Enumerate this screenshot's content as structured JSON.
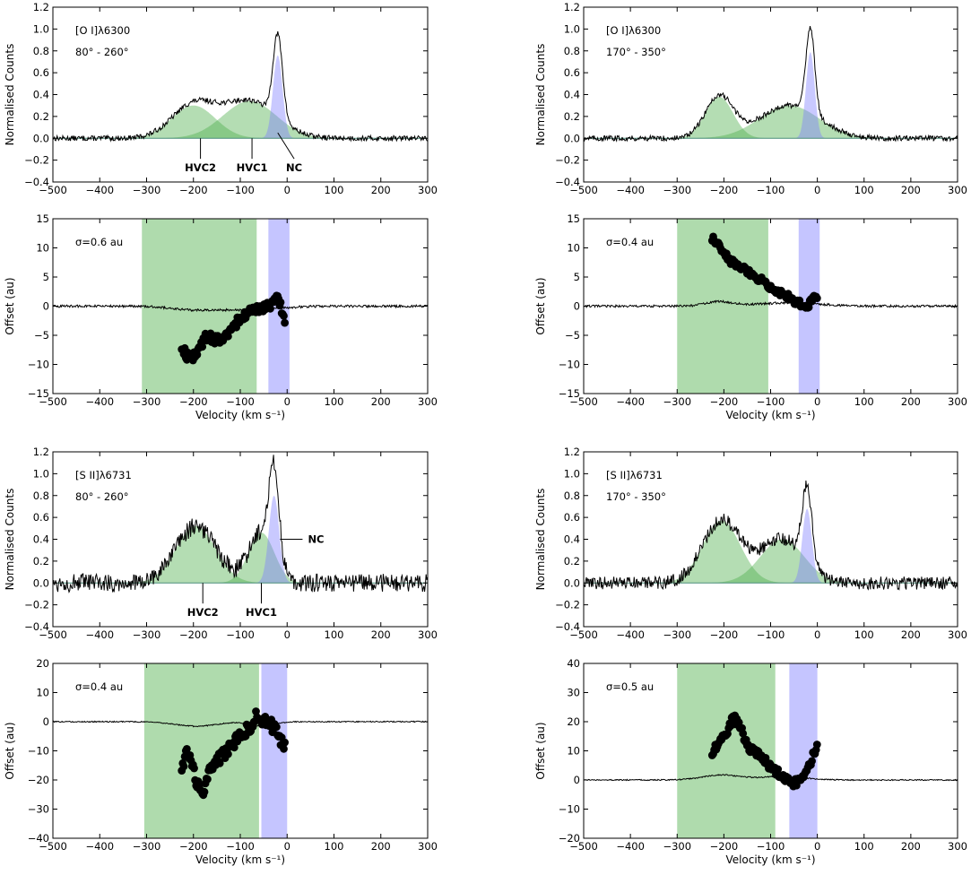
{
  "chart_data": [
    {
      "type": "line",
      "panel": "oi-spectrum-a",
      "annotation": [
        "[O I]λ6300",
        "80° - 260°"
      ],
      "ylabel": "Normalised Counts",
      "xlabel": "",
      "xlim": [
        -500,
        300
      ],
      "ylim": [
        -0.4,
        1.2
      ],
      "xticks": [
        -500,
        -400,
        -300,
        -200,
        -100,
        0,
        100,
        200,
        300
      ],
      "yticks": [
        -0.4,
        -0.2,
        0.0,
        0.2,
        0.4,
        0.6,
        0.8,
        1.0,
        1.2
      ],
      "ytick_labels": [
        "−0.4",
        "−0.2",
        "0.0",
        "0.2",
        "0.4",
        "0.6",
        "0.8",
        "1.0",
        "1.2"
      ],
      "components": [
        {
          "name": "HVC2",
          "type": "gaussian",
          "center": -200,
          "fwhm": 110,
          "peak": 0.3,
          "color": "#4daf4a"
        },
        {
          "name": "HVC1",
          "type": "gaussian",
          "center": -80,
          "fwhm": 135,
          "peak": 0.34,
          "color": "#4daf4a"
        },
        {
          "name": "NC",
          "type": "gaussian",
          "center": -20,
          "fwhm": 24,
          "peak": 0.76,
          "color": "#7f7fff"
        }
      ],
      "labels": [
        {
          "text": "HVC2",
          "x": -185,
          "y": -0.27,
          "arrow_to": [
            -185,
            0.0
          ]
        },
        {
          "text": "HVC1",
          "x": -75,
          "y": -0.27,
          "arrow_to": [
            -75,
            0.0
          ]
        },
        {
          "text": "NC",
          "x": 15,
          "y": -0.27,
          "arrow_to": [
            -20,
            0.05
          ]
        }
      ],
      "noise": 0.02
    },
    {
      "type": "scatter",
      "panel": "oi-offset-a",
      "annotation": [
        "σ=0.6 au"
      ],
      "ylabel": "Offset (au)",
      "xlabel": "Velocity (km s⁻¹)",
      "xlim": [
        -500,
        300
      ],
      "ylim": [
        -15,
        15
      ],
      "xticks": [
        -500,
        -400,
        -300,
        -200,
        -100,
        0,
        100,
        200,
        300
      ],
      "yticks": [
        -15,
        -10,
        -5,
        0,
        5,
        10,
        15
      ],
      "ytick_labels": [
        "−15",
        "−10",
        "−5",
        "0",
        "5",
        "10",
        "15"
      ],
      "shaded": [
        {
          "from": -310,
          "to": -65,
          "color": "#4daf4a"
        },
        {
          "from": -40,
          "to": 5,
          "color": "#7f7fff"
        }
      ],
      "spectrum_trace": {
        "scale": 2.0,
        "inverted": true
      },
      "points": {
        "x_start": -225,
        "x_end": -5,
        "knots": [
          [
            -225,
            -7
          ],
          [
            -210,
            -9
          ],
          [
            -190,
            -8
          ],
          [
            -175,
            -5
          ],
          [
            -150,
            -6
          ],
          [
            -130,
            -5
          ],
          [
            -110,
            -3
          ],
          [
            -90,
            -1.5
          ],
          [
            -60,
            -0.5
          ],
          [
            -30,
            0.5
          ],
          [
            -20,
            1.5
          ],
          [
            -10,
            -1
          ],
          [
            -5,
            -2.5
          ]
        ],
        "jitter": 0.8
      }
    },
    {
      "type": "line",
      "panel": "oi-spectrum-b",
      "annotation": [
        "[O I]λ6300",
        "170° - 350°"
      ],
      "ylabel": "Normalised Counts",
      "xlabel": "",
      "xlim": [
        -500,
        300
      ],
      "ylim": [
        -0.4,
        1.2
      ],
      "xticks": [
        -500,
        -400,
        -300,
        -200,
        -100,
        0,
        100,
        200,
        300
      ],
      "yticks": [
        -0.4,
        -0.2,
        0.0,
        0.2,
        0.4,
        0.6,
        0.8,
        1.0,
        1.2
      ],
      "ytick_labels": [
        "−0.4",
        "−0.2",
        "0.0",
        "0.2",
        "0.4",
        "0.6",
        "0.8",
        "1.0",
        "1.2"
      ],
      "components": [
        {
          "name": "HVC2",
          "type": "gaussian",
          "center": -210,
          "fwhm": 70,
          "peak": 0.38,
          "color": "#4daf4a"
        },
        {
          "name": "HVC1",
          "type": "gaussian",
          "center": -60,
          "fwhm": 150,
          "peak": 0.3,
          "color": "#4daf4a"
        },
        {
          "name": "NC",
          "type": "gaussian",
          "center": -15,
          "fwhm": 22,
          "peak": 0.79,
          "color": "#7f7fff"
        }
      ],
      "labels": [],
      "noise": 0.02
    },
    {
      "type": "scatter",
      "panel": "oi-offset-b",
      "annotation": [
        "σ=0.4 au"
      ],
      "ylabel": "Offset (au)",
      "xlabel": "Velocity (km s⁻¹)",
      "xlim": [
        -500,
        300
      ],
      "ylim": [
        -15,
        15
      ],
      "xticks": [
        -500,
        -400,
        -300,
        -200,
        -100,
        0,
        100,
        200,
        300
      ],
      "yticks": [
        -15,
        -10,
        -5,
        0,
        5,
        10,
        15
      ],
      "ytick_labels": [
        "−15",
        "−10",
        "−5",
        "0",
        "5",
        "10",
        "15"
      ],
      "shaded": [
        {
          "from": -300,
          "to": -105,
          "color": "#4daf4a"
        },
        {
          "from": -40,
          "to": 5,
          "color": "#7f7fff"
        }
      ],
      "spectrum_trace": {
        "scale": 2.0,
        "inverted": false
      },
      "points": {
        "x_start": -225,
        "x_end": 0,
        "knots": [
          [
            -225,
            11.5
          ],
          [
            -210,
            10.5
          ],
          [
            -190,
            8
          ],
          [
            -170,
            7
          ],
          [
            -150,
            6
          ],
          [
            -120,
            4.5
          ],
          [
            -95,
            3
          ],
          [
            -70,
            2
          ],
          [
            -50,
            1
          ],
          [
            -30,
            0
          ],
          [
            -15,
            0.5
          ],
          [
            0,
            2
          ]
        ],
        "jitter": 0.6
      }
    },
    {
      "type": "line",
      "panel": "sii-spectrum-a",
      "annotation": [
        "[S II]λ6731",
        "80° - 260°"
      ],
      "ylabel": "Normalised Counts",
      "xlabel": "",
      "xlim": [
        -500,
        300
      ],
      "ylim": [
        -0.4,
        1.2
      ],
      "xticks": [
        -500,
        -400,
        -300,
        -200,
        -100,
        0,
        100,
        200,
        300
      ],
      "yticks": [
        -0.4,
        -0.2,
        0.0,
        0.2,
        0.4,
        0.6,
        0.8,
        1.0,
        1.2
      ],
      "ytick_labels": [
        "−0.4",
        "−0.2",
        "0.0",
        "0.2",
        "0.4",
        "0.6",
        "0.8",
        "1.0",
        "1.2"
      ],
      "components": [
        {
          "name": "HVC2",
          "type": "gaussian",
          "center": -195,
          "fwhm": 100,
          "peak": 0.52,
          "color": "#4daf4a"
        },
        {
          "name": "HVC1",
          "type": "gaussian",
          "center": -55,
          "fwhm": 65,
          "peak": 0.46,
          "color": "#4daf4a"
        },
        {
          "name": "NC",
          "type": "gaussian",
          "center": -28,
          "fwhm": 26,
          "peak": 0.8,
          "color": "#7f7fff"
        }
      ],
      "labels": [
        {
          "text": "HVC2",
          "x": -180,
          "y": -0.27,
          "arrow_to": [
            -180,
            0.0
          ]
        },
        {
          "text": "HVC1",
          "x": -55,
          "y": -0.27,
          "arrow_to": [
            -55,
            0.0
          ]
        },
        {
          "text": "NC",
          "x": 75,
          "y": 0.4,
          "arrow_to": [
            -15,
            0.4
          ]
        }
      ],
      "noise": 0.07
    },
    {
      "type": "scatter",
      "panel": "sii-offset-a",
      "annotation": [
        "σ=0.4 au"
      ],
      "ylabel": "Offset (au)",
      "xlabel": "Velocity (km s⁻¹)",
      "xlim": [
        -500,
        300
      ],
      "ylim": [
        -40,
        20
      ],
      "xticks": [
        -500,
        -400,
        -300,
        -200,
        -100,
        0,
        100,
        200,
        300
      ],
      "yticks": [
        -40,
        -30,
        -20,
        -10,
        0,
        10,
        20
      ],
      "ytick_labels": [
        "−40",
        "−30",
        "−20",
        "−10",
        "0",
        "10",
        "20"
      ],
      "shaded": [
        {
          "from": -305,
          "to": -60,
          "color": "#4daf4a"
        },
        {
          "from": -55,
          "to": 0,
          "color": "#7f7fff"
        }
      ],
      "spectrum_trace": {
        "scale": 3.0,
        "inverted": true
      },
      "points": {
        "x_start": -225,
        "x_end": -5,
        "knots": [
          [
            -225,
            -16
          ],
          [
            -215,
            -10
          ],
          [
            -205,
            -14
          ],
          [
            -195,
            -20
          ],
          [
            -180,
            -26
          ],
          [
            -170,
            -18
          ],
          [
            -155,
            -14
          ],
          [
            -140,
            -12
          ],
          [
            -120,
            -8
          ],
          [
            -100,
            -5
          ],
          [
            -80,
            -2
          ],
          [
            -65,
            2
          ],
          [
            -50,
            0
          ],
          [
            -35,
            -1
          ],
          [
            -20,
            -4
          ],
          [
            -5,
            -9
          ]
        ],
        "jitter": 2.0
      }
    },
    {
      "type": "line",
      "panel": "sii-spectrum-b",
      "annotation": [
        "[S II]λ6731",
        "170° - 350°"
      ],
      "ylabel": "Normalised Counts",
      "xlabel": "",
      "xlim": [
        -500,
        300
      ],
      "ylim": [
        -0.4,
        1.2
      ],
      "xticks": [
        -500,
        -400,
        -300,
        -200,
        -100,
        0,
        100,
        200,
        300
      ],
      "yticks": [
        -0.4,
        -0.2,
        0.0,
        0.2,
        0.4,
        0.6,
        0.8,
        1.0,
        1.2
      ],
      "ytick_labels": [
        "−0.4",
        "−0.2",
        "0.0",
        "0.2",
        "0.4",
        "0.6",
        "0.8",
        "1.0",
        "1.2"
      ],
      "components": [
        {
          "name": "HVC2",
          "type": "gaussian",
          "center": -205,
          "fwhm": 95,
          "peak": 0.57,
          "color": "#4daf4a"
        },
        {
          "name": "HVC1",
          "type": "gaussian",
          "center": -75,
          "fwhm": 110,
          "peak": 0.4,
          "color": "#4daf4a"
        },
        {
          "name": "NC",
          "type": "gaussian",
          "center": -22,
          "fwhm": 24,
          "peak": 0.68,
          "color": "#7f7fff"
        }
      ],
      "labels": [],
      "noise": 0.05
    },
    {
      "type": "scatter",
      "panel": "sii-offset-b",
      "annotation": [
        "σ=0.5 au"
      ],
      "ylabel": "Offset (au)",
      "xlabel": "Velocity (km s⁻¹)",
      "xlim": [
        -500,
        300
      ],
      "ylim": [
        -20,
        40
      ],
      "xticks": [
        -500,
        -400,
        -300,
        -200,
        -100,
        0,
        100,
        200,
        300
      ],
      "yticks": [
        -20,
        -10,
        0,
        10,
        20,
        30,
        40
      ],
      "ytick_labels": [
        "−20",
        "−10",
        "0",
        "10",
        "20",
        "30",
        "40"
      ],
      "shaded": [
        {
          "from": -300,
          "to": -90,
          "color": "#4daf4a"
        },
        {
          "from": -60,
          "to": 0,
          "color": "#7f7fff"
        }
      ],
      "spectrum_trace": {
        "scale": 3.0,
        "inverted": false
      },
      "points": {
        "x_start": -225,
        "x_end": 0,
        "knots": [
          [
            -225,
            9
          ],
          [
            -210,
            14
          ],
          [
            -195,
            16
          ],
          [
            -180,
            22
          ],
          [
            -165,
            18
          ],
          [
            -150,
            12
          ],
          [
            -130,
            9
          ],
          [
            -110,
            6
          ],
          [
            -95,
            4
          ],
          [
            -80,
            2
          ],
          [
            -65,
            0
          ],
          [
            -50,
            -1
          ],
          [
            -35,
            0
          ],
          [
            -20,
            4
          ],
          [
            -10,
            8
          ],
          [
            0,
            11
          ]
        ],
        "jitter": 1.5
      }
    }
  ]
}
